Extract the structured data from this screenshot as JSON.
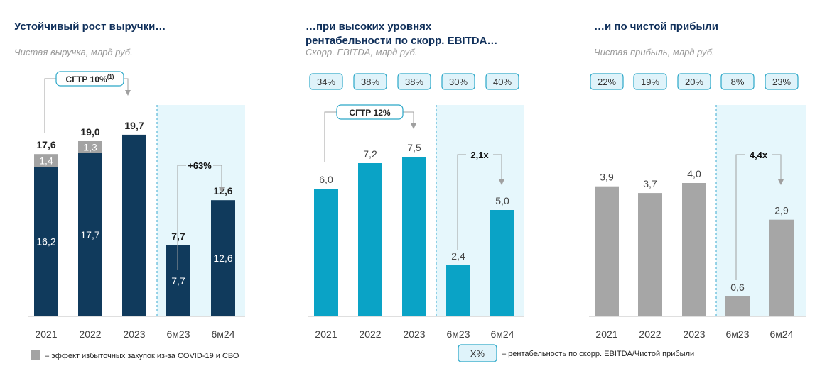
{
  "colors": {
    "navy": "#103a5c",
    "teal": "#0aa3c6",
    "gray": "#a6a6a6",
    "covid_gray": "#a3a3a3",
    "highlight_bg": "#e6f7fc",
    "pill_bg": "#dff3fa",
    "pill_border": "#2aa7c8",
    "title": "#0f2f5a"
  },
  "legend": {
    "covid": "– эффект избыточных закупок из-за COVID-19 и СВО",
    "box_label": "X%",
    "margin": "– рентабельность по скорр. EBITDA/Чистой прибыли"
  },
  "chart_data": [
    {
      "type": "bar",
      "title": [
        "Устойчивый рост выручки…"
      ],
      "subtitle": "Чистая выручка, млрд руб.",
      "categories": [
        "2021",
        "2022",
        "2023",
        "6м23",
        "6м24"
      ],
      "series": [
        {
          "name": "base",
          "values": [
            16.2,
            17.7,
            19.7,
            7.7,
            12.6
          ]
        },
        {
          "name": "covid_effect",
          "values": [
            1.4,
            1.3,
            0,
            0,
            0
          ]
        }
      ],
      "inner_labels": [
        "16,2",
        "17,7",
        "",
        "7,7",
        "12,6"
      ],
      "covid_labels": [
        "1,4",
        "1,3",
        "",
        "",
        ""
      ],
      "top_labels": [
        "17,6",
        "19,0",
        "19,7",
        "7,7",
        "12,6"
      ],
      "ylim": [
        0,
        21
      ],
      "cagr": {
        "label": "СГТР 10%",
        "sup": "(1)",
        "from": 0,
        "to": 2
      },
      "growth": {
        "label": "+63%",
        "from": 3,
        "to": 4
      },
      "highlight_from": 3
    },
    {
      "type": "bar",
      "title": [
        "…при высоких уровнях",
        "рентабельности по скорр. EBITDA…"
      ],
      "subtitle": "Скорр. EBITDA, млрд руб.",
      "categories": [
        "2021",
        "2022",
        "2023",
        "6м23",
        "6м24"
      ],
      "series": [
        {
          "name": "EBITDA",
          "values": [
            6.0,
            7.2,
            7.5,
            2.4,
            5.0
          ]
        }
      ],
      "top_labels": [
        "6,0",
        "7,2",
        "7,5",
        "2,4",
        "5,0"
      ],
      "margins": [
        "34%",
        "38%",
        "38%",
        "30%",
        "40%"
      ],
      "ylim": [
        0,
        9.27
      ],
      "cagr": {
        "label": "СГТР 12%",
        "sup": "",
        "from": 0,
        "to": 2
      },
      "growth": {
        "label": "2,1x",
        "from": 3,
        "to": 4
      },
      "highlight_from": 3
    },
    {
      "type": "bar",
      "title": [
        "…и по чистой прибыли"
      ],
      "subtitle": "Чистая прибыль, млрд руб.",
      "categories": [
        "2021",
        "2022",
        "2023",
        "6м23",
        "6м24"
      ],
      "series": [
        {
          "name": "Net income",
          "values": [
            3.9,
            3.7,
            4.0,
            0.6,
            2.9
          ]
        }
      ],
      "top_labels": [
        "3,9",
        "3,7",
        "4,0",
        "0,6",
        "2,9"
      ],
      "margins": [
        "22%",
        "19%",
        "20%",
        "8%",
        "23%"
      ],
      "ylim": [
        0,
        4.73
      ],
      "growth": {
        "label": "4,4x",
        "from": 3,
        "to": 4
      },
      "highlight_from": 3
    }
  ]
}
